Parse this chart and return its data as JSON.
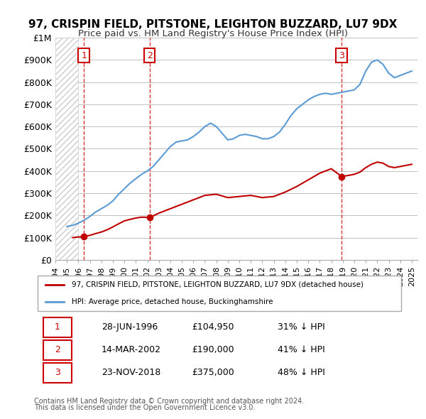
{
  "title": "97, CRISPIN FIELD, PITSTONE, LEIGHTON BUZZARD, LU7 9DX",
  "subtitle": "Price paid vs. HM Land Registry's House Price Index (HPI)",
  "sale_dates": [
    "1996-06-28",
    "2002-03-14",
    "2018-11-23"
  ],
  "sale_prices": [
    104950,
    190000,
    375000
  ],
  "sale_labels": [
    "1",
    "2",
    "3"
  ],
  "hpi_line_color": "#5b9bd5",
  "sale_line_color": "#c00000",
  "marker_box_color": "#cc0000",
  "xmin": 1994.0,
  "xmax": 2025.5,
  "ymin": 0,
  "ymax": 1000000,
  "yticks": [
    0,
    100000,
    200000,
    300000,
    400000,
    500000,
    600000,
    700000,
    800000,
    900000,
    1000000
  ],
  "ytick_labels": [
    "£0",
    "£100K",
    "£200K",
    "£300K",
    "£400K",
    "£500K",
    "£600K",
    "£700K",
    "£800K",
    "£900K",
    "£1M"
  ],
  "legend_line1": "97, CRISPIN FIELD, PITSTONE, LEIGHTON BUZZARD, LU7 9DX (detached house)",
  "legend_line2": "HPI: Average price, detached house, Buckinghamshire",
  "table_rows": [
    [
      "1",
      "28-JUN-1996",
      "£104,950",
      "31% ↓ HPI"
    ],
    [
      "2",
      "14-MAR-2002",
      "£190,000",
      "41% ↓ HPI"
    ],
    [
      "3",
      "23-NOV-2018",
      "£375,000",
      "48% ↓ HPI"
    ]
  ],
  "footnote1": "Contains HM Land Registry data © Crown copyright and database right 2024.",
  "footnote2": "This data is licensed under the Open Government Licence v3.0.",
  "bg_hatch_color": "#e0e0e0",
  "grid_color": "#c0c0c0"
}
